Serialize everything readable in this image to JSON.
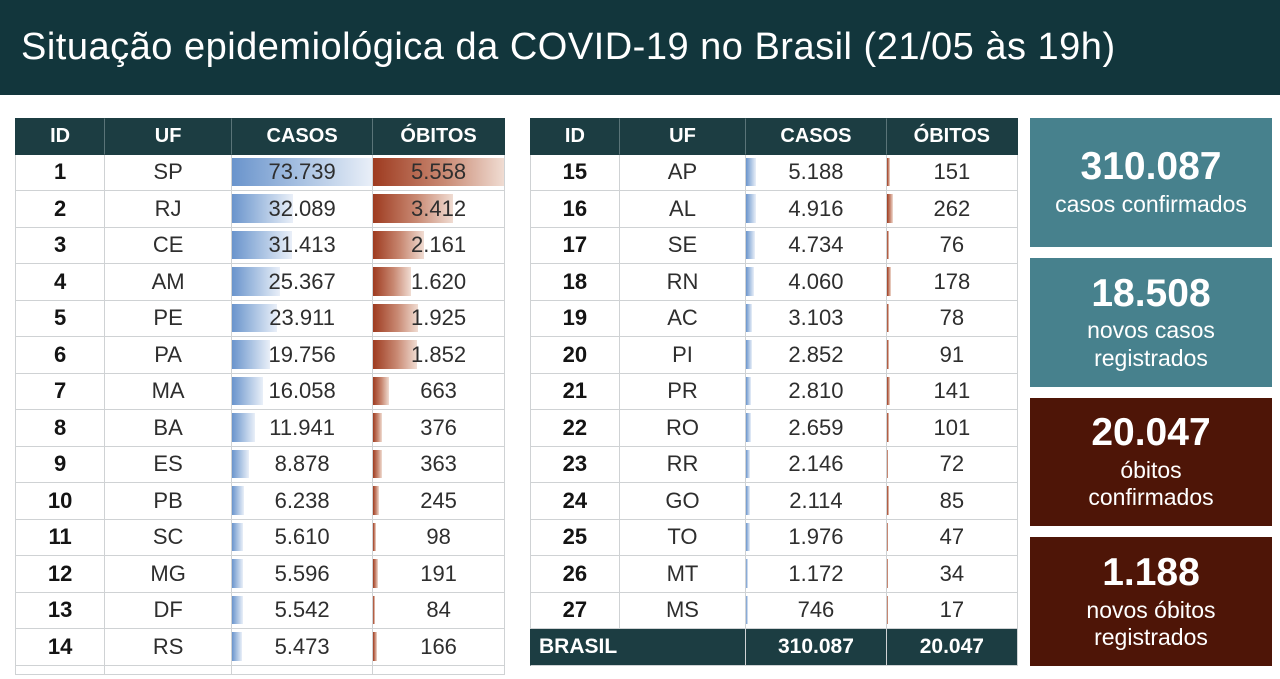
{
  "header": {
    "title": "Situação epidemiológica da COVID-19 no Brasil (21/05 às 19h)"
  },
  "tables": {
    "columns": [
      "ID",
      "UF",
      "CASOS",
      "ÓBITOS"
    ],
    "databar_max": {
      "casos": 73739,
      "obitos": 5558
    },
    "left_rows": [
      {
        "id": "1",
        "uf": "SP",
        "casos": "73.739",
        "casos_pct": 100,
        "obitos": "5.558",
        "obitos_pct": 100
      },
      {
        "id": "2",
        "uf": "RJ",
        "casos": "32.089",
        "casos_pct": 43.5,
        "obitos": "3.412",
        "obitos_pct": 61.4
      },
      {
        "id": "3",
        "uf": "CE",
        "casos": "31.413",
        "casos_pct": 42.6,
        "obitos": "2.161",
        "obitos_pct": 38.9
      },
      {
        "id": "4",
        "uf": "AM",
        "casos": "25.367",
        "casos_pct": 34.4,
        "obitos": "1.620",
        "obitos_pct": 29.1
      },
      {
        "id": "5",
        "uf": "PE",
        "casos": "23.911",
        "casos_pct": 32.4,
        "obitos": "1.925",
        "obitos_pct": 34.6
      },
      {
        "id": "6",
        "uf": "PA",
        "casos": "19.756",
        "casos_pct": 26.8,
        "obitos": "1.852",
        "obitos_pct": 33.3
      },
      {
        "id": "7",
        "uf": "MA",
        "casos": "16.058",
        "casos_pct": 21.8,
        "obitos": "663",
        "obitos_pct": 11.9
      },
      {
        "id": "8",
        "uf": "BA",
        "casos": "11.941",
        "casos_pct": 16.2,
        "obitos": "376",
        "obitos_pct": 6.8
      },
      {
        "id": "9",
        "uf": "ES",
        "casos": "8.878",
        "casos_pct": 12.0,
        "obitos": "363",
        "obitos_pct": 6.5
      },
      {
        "id": "10",
        "uf": "PB",
        "casos": "6.238",
        "casos_pct": 8.5,
        "obitos": "245",
        "obitos_pct": 4.4
      },
      {
        "id": "11",
        "uf": "SC",
        "casos": "5.610",
        "casos_pct": 7.6,
        "obitos": "98",
        "obitos_pct": 1.8
      },
      {
        "id": "12",
        "uf": "MG",
        "casos": "5.596",
        "casos_pct": 7.6,
        "obitos": "191",
        "obitos_pct": 3.4
      },
      {
        "id": "13",
        "uf": "DF",
        "casos": "5.542",
        "casos_pct": 7.5,
        "obitos": "84",
        "obitos_pct": 1.5
      },
      {
        "id": "14",
        "uf": "RS",
        "casos": "5.473",
        "casos_pct": 7.4,
        "obitos": "166",
        "obitos_pct": 3.0
      }
    ],
    "right_rows": [
      {
        "id": "15",
        "uf": "AP",
        "casos": "5.188",
        "casos_pct": 7.0,
        "obitos": "151",
        "obitos_pct": 2.7
      },
      {
        "id": "16",
        "uf": "AL",
        "casos": "4.916",
        "casos_pct": 6.7,
        "obitos": "262",
        "obitos_pct": 4.7
      },
      {
        "id": "17",
        "uf": "SE",
        "casos": "4.734",
        "casos_pct": 6.4,
        "obitos": "76",
        "obitos_pct": 1.4
      },
      {
        "id": "18",
        "uf": "RN",
        "casos": "4.060",
        "casos_pct": 5.5,
        "obitos": "178",
        "obitos_pct": 3.2
      },
      {
        "id": "19",
        "uf": "AC",
        "casos": "3.103",
        "casos_pct": 4.2,
        "obitos": "78",
        "obitos_pct": 1.4
      },
      {
        "id": "20",
        "uf": "PI",
        "casos": "2.852",
        "casos_pct": 3.9,
        "obitos": "91",
        "obitos_pct": 1.6
      },
      {
        "id": "21",
        "uf": "PR",
        "casos": "2.810",
        "casos_pct": 3.8,
        "obitos": "141",
        "obitos_pct": 2.5
      },
      {
        "id": "22",
        "uf": "RO",
        "casos": "2.659",
        "casos_pct": 3.6,
        "obitos": "101",
        "obitos_pct": 1.8
      },
      {
        "id": "23",
        "uf": "RR",
        "casos": "2.146",
        "casos_pct": 2.9,
        "obitos": "72",
        "obitos_pct": 1.3
      },
      {
        "id": "24",
        "uf": "GO",
        "casos": "2.114",
        "casos_pct": 2.9,
        "obitos": "85",
        "obitos_pct": 1.5
      },
      {
        "id": "25",
        "uf": "TO",
        "casos": "1.976",
        "casos_pct": 2.7,
        "obitos": "47",
        "obitos_pct": 0.8
      },
      {
        "id": "26",
        "uf": "MT",
        "casos": "1.172",
        "casos_pct": 1.6,
        "obitos": "34",
        "obitos_pct": 0.6
      },
      {
        "id": "27",
        "uf": "MS",
        "casos": "746",
        "casos_pct": 1.0,
        "obitos": "17",
        "obitos_pct": 0.3
      }
    ],
    "footer": {
      "label": "BRASIL",
      "casos": "310.087",
      "obitos": "20.047"
    }
  },
  "cards": [
    {
      "value": "310.087",
      "label": "casos confirmados",
      "bg": "#47818D"
    },
    {
      "value": "18.508",
      "label": "novos casos\nregistrados",
      "bg": "#47818D"
    },
    {
      "value": "20.047",
      "label": "óbitos\nconfirmados",
      "bg": "#4E1507"
    },
    {
      "value": "1.188",
      "label": "novos óbitos\nregistrados",
      "bg": "#4E1507"
    }
  ],
  "colors": {
    "titlebar": "#12363C",
    "table_header": "#1C3D42",
    "casos_bar": "#6A94CC",
    "obitos_bar": "#9E3B20",
    "card_teal": "#47818D",
    "card_maroon": "#4E1507"
  },
  "chart_data": {
    "type": "table",
    "title": "Situação epidemiológica da COVID-19 no Brasil (21/05 às 19h)",
    "columns": [
      "ID",
      "UF",
      "CASOS",
      "ÓBITOS"
    ],
    "rows": [
      [
        1,
        "SP",
        73739,
        5558
      ],
      [
        2,
        "RJ",
        32089,
        3412
      ],
      [
        3,
        "CE",
        31413,
        2161
      ],
      [
        4,
        "AM",
        25367,
        1620
      ],
      [
        5,
        "PE",
        23911,
        1925
      ],
      [
        6,
        "PA",
        19756,
        1852
      ],
      [
        7,
        "MA",
        16058,
        663
      ],
      [
        8,
        "BA",
        11941,
        376
      ],
      [
        9,
        "ES",
        8878,
        363
      ],
      [
        10,
        "PB",
        6238,
        245
      ],
      [
        11,
        "SC",
        5610,
        98
      ],
      [
        12,
        "MG",
        5596,
        191
      ],
      [
        13,
        "DF",
        5542,
        84
      ],
      [
        14,
        "RS",
        5473,
        166
      ],
      [
        15,
        "AP",
        5188,
        151
      ],
      [
        16,
        "AL",
        4916,
        262
      ],
      [
        17,
        "SE",
        4734,
        76
      ],
      [
        18,
        "RN",
        4060,
        178
      ],
      [
        19,
        "AC",
        3103,
        78
      ],
      [
        20,
        "PI",
        2852,
        91
      ],
      [
        21,
        "PR",
        2810,
        141
      ],
      [
        22,
        "RO",
        2659,
        101
      ],
      [
        23,
        "RR",
        2146,
        72
      ],
      [
        24,
        "GO",
        2114,
        85
      ],
      [
        25,
        "TO",
        1976,
        47
      ],
      [
        26,
        "MT",
        1172,
        34
      ],
      [
        27,
        "MS",
        746,
        17
      ]
    ],
    "totals": {
      "label": "BRASIL",
      "casos": 310087,
      "obitos": 20047
    },
    "summary": {
      "casos_confirmados": 310087,
      "novos_casos_registrados": 18508,
      "obitos_confirmados": 20047,
      "novos_obitos_registrados": 1188
    },
    "databar_max": {
      "casos": 73739,
      "obitos": 5558
    },
    "databar_style": "excel-gradient, casos=blue, obitos=red, scaled to max across both tables"
  }
}
